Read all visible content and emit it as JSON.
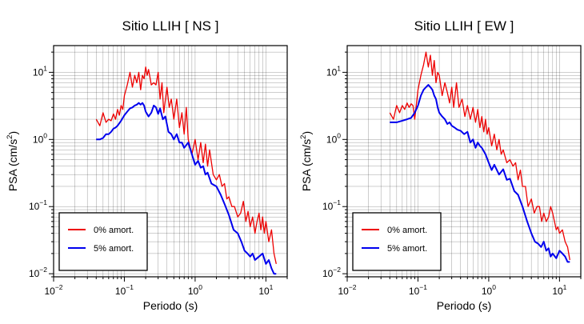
{
  "chart_data": [
    {
      "type": "line",
      "title": "Sitio LLIH [ NS ]",
      "xlabel": "Periodo (s)",
      "ylabel_main": "PSA (cm/s",
      "ylabel_exp": "2",
      "ylabel_close": ")",
      "xscale": "log",
      "yscale": "log",
      "xlim": [
        0.01,
        20
      ],
      "ylim": [
        0.009,
        25
      ],
      "grid": true,
      "legend_position": "bottom-left",
      "xticks": [
        {
          "base": "10",
          "exp": "−2"
        },
        {
          "base": "10",
          "exp": "−1"
        },
        {
          "base": "10",
          "exp": "0"
        },
        {
          "base": "10",
          "exp": "1"
        }
      ],
      "yticks": [
        {
          "base": "10",
          "exp": "−2"
        },
        {
          "base": "10",
          "exp": "−1"
        },
        {
          "base": "10",
          "exp": "0"
        },
        {
          "base": "10",
          "exp": "1"
        }
      ],
      "series": [
        {
          "name": "0% amort.",
          "color": "#ee0000",
          "x": [
            0.04,
            0.045,
            0.05,
            0.055,
            0.06,
            0.065,
            0.07,
            0.075,
            0.08,
            0.085,
            0.09,
            0.095,
            0.1,
            0.11,
            0.12,
            0.13,
            0.14,
            0.15,
            0.16,
            0.17,
            0.18,
            0.19,
            0.2,
            0.21,
            0.22,
            0.24,
            0.26,
            0.28,
            0.3,
            0.32,
            0.34,
            0.36,
            0.4,
            0.43,
            0.46,
            0.5,
            0.55,
            0.6,
            0.65,
            0.7,
            0.75,
            0.8,
            0.9,
            1.0,
            1.1,
            1.2,
            1.3,
            1.4,
            1.5,
            1.6,
            1.8,
            2.0,
            2.2,
            2.4,
            2.6,
            2.8,
            3.0,
            3.3,
            3.6,
            4.0,
            4.4,
            4.8,
            5.2,
            5.6,
            6.0,
            6.5,
            7.0,
            7.5,
            8.0,
            8.5,
            9.0,
            9.5,
            10.0,
            11.0,
            12.0,
            13.0,
            14.0
          ],
          "y": [
            2.0,
            1.6,
            2.5,
            1.8,
            2.0,
            1.9,
            2.4,
            2.0,
            2.8,
            2.3,
            3.2,
            2.8,
            4.5,
            6.5,
            10.0,
            6.0,
            9.0,
            7.0,
            10.0,
            5.5,
            9.0,
            8.0,
            12.0,
            9.0,
            11.0,
            6.5,
            7.0,
            6.5,
            10.0,
            4.0,
            7.0,
            2.5,
            6.0,
            3.0,
            4.0,
            2.0,
            4.0,
            1.5,
            2.5,
            1.2,
            3.0,
            1.0,
            0.6,
            1.0,
            0.5,
            0.9,
            0.45,
            0.85,
            0.4,
            0.7,
            0.3,
            0.25,
            0.3,
            0.2,
            0.22,
            0.13,
            0.14,
            0.1,
            0.1,
            0.07,
            0.08,
            0.12,
            0.06,
            0.085,
            0.05,
            0.07,
            0.04,
            0.06,
            0.08,
            0.045,
            0.07,
            0.04,
            0.06,
            0.03,
            0.045,
            0.02,
            0.014
          ]
        },
        {
          "name": "5% amort.",
          "color": "#0000ee",
          "x": [
            0.04,
            0.045,
            0.05,
            0.055,
            0.06,
            0.065,
            0.07,
            0.075,
            0.08,
            0.09,
            0.1,
            0.11,
            0.12,
            0.13,
            0.14,
            0.15,
            0.16,
            0.17,
            0.18,
            0.19,
            0.2,
            0.22,
            0.24,
            0.26,
            0.28,
            0.3,
            0.32,
            0.35,
            0.38,
            0.42,
            0.46,
            0.5,
            0.55,
            0.6,
            0.65,
            0.7,
            0.8,
            0.9,
            1.0,
            1.1,
            1.2,
            1.3,
            1.4,
            1.5,
            1.7,
            2.0,
            2.3,
            2.6,
            3.0,
            3.5,
            4.0,
            4.5,
            5.0,
            5.5,
            6.0,
            6.5,
            7.0,
            7.5,
            8.0,
            9.0,
            10.0,
            11.0,
            12.0,
            13.0,
            14.0
          ],
          "y": [
            1.0,
            1.0,
            1.05,
            1.2,
            1.2,
            1.3,
            1.45,
            1.5,
            1.6,
            1.9,
            2.3,
            2.6,
            2.9,
            3.0,
            3.2,
            3.3,
            3.5,
            3.3,
            3.5,
            3.2,
            2.6,
            2.2,
            2.5,
            3.2,
            3.0,
            2.4,
            2.9,
            2.0,
            2.2,
            1.3,
            1.2,
            1.0,
            1.2,
            0.9,
            0.9,
            0.75,
            0.9,
            0.6,
            0.42,
            0.48,
            0.38,
            0.4,
            0.3,
            0.32,
            0.22,
            0.2,
            0.15,
            0.11,
            0.075,
            0.045,
            0.04,
            0.03,
            0.022,
            0.02,
            0.018,
            0.02,
            0.016,
            0.017,
            0.018,
            0.02,
            0.014,
            0.016,
            0.012,
            0.01,
            0.01
          ]
        }
      ]
    },
    {
      "type": "line",
      "title": "Sitio LLIH [ EW ]",
      "xlabel": "Periodo (s)",
      "ylabel_main": "PSA (cm/s",
      "ylabel_exp": "2",
      "ylabel_close": ")",
      "xscale": "log",
      "yscale": "log",
      "xlim": [
        0.01,
        20
      ],
      "ylim": [
        0.009,
        25
      ],
      "grid": true,
      "legend_position": "bottom-left",
      "xticks": [
        {
          "base": "10",
          "exp": "−2"
        },
        {
          "base": "10",
          "exp": "−1"
        },
        {
          "base": "10",
          "exp": "0"
        },
        {
          "base": "10",
          "exp": "1"
        }
      ],
      "yticks": [
        {
          "base": "10",
          "exp": "−2"
        },
        {
          "base": "10",
          "exp": "−1"
        },
        {
          "base": "10",
          "exp": "0"
        },
        {
          "base": "10",
          "exp": "1"
        }
      ],
      "series": [
        {
          "name": "0% amort.",
          "color": "#ee0000",
          "x": [
            0.04,
            0.045,
            0.05,
            0.055,
            0.06,
            0.065,
            0.07,
            0.075,
            0.08,
            0.085,
            0.09,
            0.1,
            0.11,
            0.12,
            0.13,
            0.14,
            0.15,
            0.16,
            0.17,
            0.18,
            0.19,
            0.2,
            0.22,
            0.24,
            0.26,
            0.28,
            0.3,
            0.32,
            0.35,
            0.38,
            0.42,
            0.46,
            0.5,
            0.55,
            0.6,
            0.65,
            0.7,
            0.75,
            0.8,
            0.85,
            0.9,
            0.95,
            1.0,
            1.1,
            1.2,
            1.3,
            1.4,
            1.5,
            1.6,
            1.8,
            2.0,
            2.2,
            2.4,
            2.6,
            2.8,
            3.0,
            3.3,
            3.6,
            4.0,
            4.4,
            4.8,
            5.2,
            5.6,
            6.0,
            6.5,
            7.0,
            7.5,
            8.0,
            8.5,
            9.0,
            9.5,
            10.0,
            11.0,
            12.0,
            13.0,
            14.0
          ],
          "y": [
            2.5,
            2.0,
            3.2,
            2.5,
            3.2,
            2.8,
            3.5,
            3.0,
            3.4,
            3.2,
            2.0,
            5.5,
            9.0,
            13.0,
            20.0,
            12.0,
            18.0,
            9.0,
            15.0,
            7.0,
            10.0,
            9.0,
            4.5,
            7.0,
            5.0,
            3.5,
            6.0,
            3.0,
            7.0,
            3.0,
            4.0,
            2.2,
            3.2,
            2.0,
            3.0,
            1.8,
            2.8,
            1.5,
            2.2,
            1.3,
            2.0,
            1.2,
            1.5,
            0.8,
            1.2,
            0.7,
            1.0,
            0.6,
            0.7,
            0.45,
            0.5,
            0.4,
            0.45,
            0.25,
            0.35,
            0.2,
            0.2,
            0.1,
            0.13,
            0.08,
            0.1,
            0.1,
            0.06,
            0.08,
            0.06,
            0.07,
            0.1,
            0.08,
            0.06,
            0.045,
            0.05,
            0.04,
            0.045,
            0.03,
            0.025,
            0.016
          ]
        },
        {
          "name": "5% amort.",
          "color": "#0000ee",
          "x": [
            0.04,
            0.05,
            0.06,
            0.07,
            0.08,
            0.09,
            0.1,
            0.11,
            0.12,
            0.13,
            0.14,
            0.15,
            0.16,
            0.17,
            0.18,
            0.19,
            0.2,
            0.22,
            0.24,
            0.26,
            0.28,
            0.3,
            0.33,
            0.36,
            0.4,
            0.45,
            0.5,
            0.55,
            0.6,
            0.65,
            0.7,
            0.75,
            0.8,
            0.9,
            1.0,
            1.1,
            1.2,
            1.4,
            1.6,
            1.8,
            2.0,
            2.3,
            2.6,
            3.0,
            3.5,
            4.0,
            4.5,
            5.0,
            5.5,
            6.0,
            6.5,
            7.0,
            7.5,
            8.0,
            9.0,
            10.0,
            11.0,
            12.0,
            13.0,
            14.0
          ],
          "y": [
            1.8,
            1.8,
            1.9,
            2.0,
            2.1,
            2.5,
            3.2,
            4.5,
            5.5,
            6.0,
            6.5,
            6.0,
            5.5,
            4.5,
            4.0,
            3.0,
            2.5,
            2.2,
            2.0,
            1.7,
            1.8,
            1.6,
            1.5,
            1.4,
            1.35,
            1.2,
            1.3,
            0.9,
            1.0,
            0.75,
            0.9,
            0.8,
            0.75,
            0.6,
            0.45,
            0.35,
            0.42,
            0.3,
            0.36,
            0.25,
            0.26,
            0.17,
            0.15,
            0.1,
            0.06,
            0.04,
            0.03,
            0.028,
            0.025,
            0.03,
            0.022,
            0.024,
            0.018,
            0.02,
            0.017,
            0.022,
            0.02,
            0.018,
            0.015,
            0.015
          ]
        }
      ]
    }
  ]
}
